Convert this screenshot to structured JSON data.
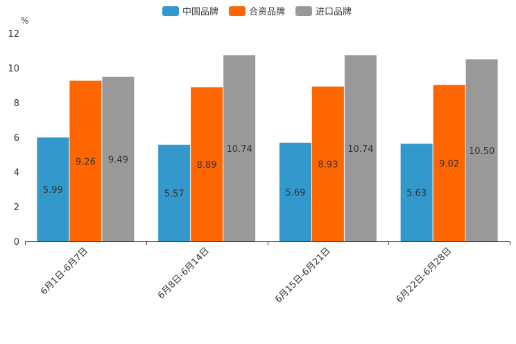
{
  "chart_data": {
    "type": "bar",
    "title": "",
    "ylabel": "%",
    "xlabel": "",
    "ylim": [
      0,
      12
    ],
    "yticks": [
      0,
      2,
      4,
      6,
      8,
      10,
      12
    ],
    "grid": false,
    "legend_position": "top-center",
    "categories": [
      "6月1日-6月7日",
      "6月8日-6月14日",
      "6月15日-6月21日",
      "6月22日-6月28日"
    ],
    "series": [
      {
        "name": "中国品牌",
        "color": "#3399cc",
        "values": [
          5.99,
          5.57,
          5.69,
          5.63
        ],
        "labels": [
          "5.99",
          "5.57",
          "5.69",
          "5.63"
        ]
      },
      {
        "name": "合资品牌",
        "color": "#ff6600",
        "values": [
          9.26,
          8.89,
          8.93,
          9.02
        ],
        "labels": [
          "9.26",
          "8.89",
          "8.93",
          "9.02"
        ]
      },
      {
        "name": "进口品牌",
        "color": "#999999",
        "values": [
          9.49,
          10.74,
          10.74,
          10.5
        ],
        "labels": [
          "9.49",
          "10.74",
          "10.74",
          "10.50"
        ]
      }
    ]
  }
}
